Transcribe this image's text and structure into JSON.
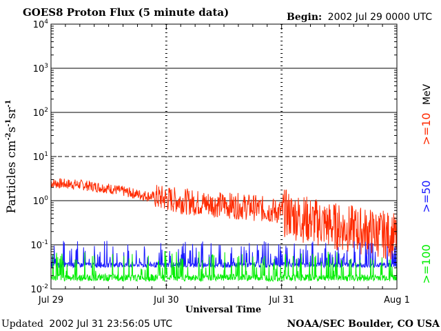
{
  "header": {
    "title": "GOES8 Proton Flux (5 minute data)",
    "begin_label": "Begin:",
    "begin_value": "2002 Jul 29 0000 UTC"
  },
  "footer": {
    "updated_label": "Updated",
    "updated_value": "2002 Jul 31 23:56:05 UTC",
    "credit": "NOAA/SEC Boulder, CO USA"
  },
  "colors": {
    "ge10": "#ff2a00",
    "ge50": "#1a1aff",
    "ge100": "#00ee00",
    "unit": "#000000"
  },
  "chart_data": {
    "type": "line",
    "title": "GOES8 Proton Flux (5 minute data)",
    "xlabel": "Universal Time",
    "ylabel": "Particles cm-2s-1sr-1",
    "y_scale": "log",
    "ylim": [
      0.01,
      10000
    ],
    "xlim": [
      "2002-07-29",
      "2002-08-01"
    ],
    "x_ticks": [
      "Jul 29",
      "Jul 30",
      "Jul 31",
      "Aug 1"
    ],
    "y_ticks": [
      {
        "base": "10",
        "exp": "-2",
        "value": 0.01
      },
      {
        "base": "10",
        "exp": "-1",
        "value": 0.1
      },
      {
        "base": "10",
        "exp": "0",
        "value": 1
      },
      {
        "base": "10",
        "exp": "1",
        "value": 10
      },
      {
        "base": "10",
        "exp": "2",
        "value": 100
      },
      {
        "base": "10",
        "exp": "3",
        "value": 1000
      },
      {
        "base": "10",
        "exp": "4",
        "value": 10000
      }
    ],
    "legend": {
      "unit": "MeV",
      "entries": [
        ">=10",
        ">=50",
        ">=100"
      ]
    },
    "series": [
      {
        "name": ">=10",
        "x": [
          "2002-07-29T00:00",
          "2002-07-29T06:00",
          "2002-07-29T12:00",
          "2002-07-29T18:00",
          "2002-07-30T00:00",
          "2002-07-30T06:00",
          "2002-07-30T12:00",
          "2002-07-30T18:00",
          "2002-07-31T00:00",
          "2002-07-31T06:00",
          "2002-07-31T12:00",
          "2002-07-31T18:00",
          "2002-07-31T23:55"
        ],
        "values": [
          2.5,
          2.3,
          1.9,
          1.4,
          1.1,
          0.9,
          0.8,
          0.7,
          0.55,
          0.35,
          0.25,
          0.2,
          0.15
        ]
      },
      {
        "name": ">=50",
        "x": [
          "2002-07-29T00:00",
          "2002-07-29T12:00",
          "2002-07-30T00:00",
          "2002-07-30T12:00",
          "2002-07-31T00:00",
          "2002-07-31T12:00",
          "2002-07-31T23:55"
        ],
        "values": [
          0.035,
          0.035,
          0.035,
          0.035,
          0.035,
          0.035,
          0.035
        ]
      },
      {
        "name": ">=100",
        "x": [
          "2002-07-29T00:00",
          "2002-07-29T12:00",
          "2002-07-30T00:00",
          "2002-07-30T12:00",
          "2002-07-31T00:00",
          "2002-07-31T12:00",
          "2002-07-31T23:55"
        ],
        "values": [
          0.018,
          0.018,
          0.018,
          0.018,
          0.018,
          0.018,
          0.018
        ]
      }
    ]
  }
}
